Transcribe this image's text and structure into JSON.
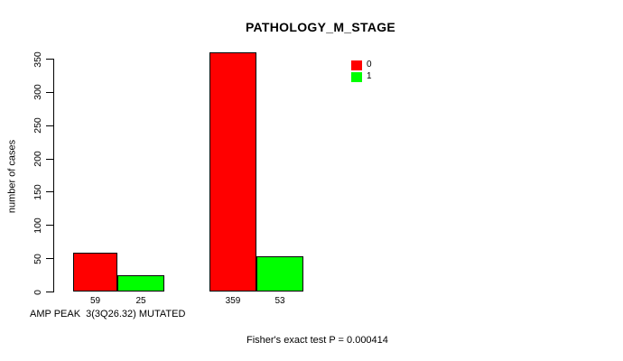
{
  "chart_data": {
    "type": "bar",
    "title": "PATHOLOGY_M_STAGE",
    "xlabel": "AMP PEAK  3(3Q26.32) MUTATED",
    "ylabel": "number of cases",
    "ylim": [
      0,
      350
    ],
    "yticks": [
      0,
      50,
      100,
      150,
      200,
      250,
      300,
      350
    ],
    "series": [
      {
        "name": "0",
        "color": "#ff0000",
        "values": [
          59,
          359
        ]
      },
      {
        "name": "1",
        "color": "#00ff00",
        "values": [
          25,
          53
        ]
      }
    ],
    "bar_value_labels": [
      "59",
      "25",
      "359",
      "53"
    ],
    "annotation": "Fisher's exact test P = 0.000414",
    "grid": false,
    "legend_position": "top-right"
  },
  "legend": {
    "entries": [
      {
        "label": "0",
        "color": "#ff0000"
      },
      {
        "label": "1",
        "color": "#00ff00"
      }
    ]
  },
  "colors": {
    "background": "#ffffff",
    "axis": "#000000",
    "bar_border": "#000000"
  }
}
